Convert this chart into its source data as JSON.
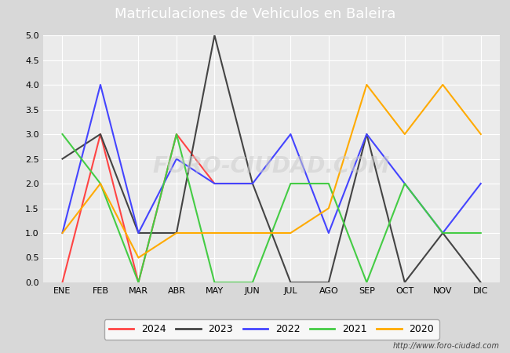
{
  "title": "Matriculaciones de Vehiculos en Baleira",
  "months": [
    "ENE",
    "FEB",
    "MAR",
    "ABR",
    "MAY",
    "JUN",
    "JUL",
    "AGO",
    "SEP",
    "OCT",
    "NOV",
    "DIC"
  ],
  "series": {
    "2024": {
      "color": "#ff4444",
      "values": [
        0,
        3,
        0,
        3,
        2,
        2,
        null,
        null,
        null,
        null,
        null,
        null
      ]
    },
    "2023": {
      "color": "#444444",
      "values": [
        2.5,
        3,
        1,
        1,
        5,
        2,
        0,
        0,
        3,
        0,
        1,
        0
      ]
    },
    "2022": {
      "color": "#4444ff",
      "values": [
        1,
        4,
        1,
        2.5,
        2,
        2,
        3,
        1,
        3,
        2,
        1,
        2
      ]
    },
    "2021": {
      "color": "#44cc44",
      "values": [
        3,
        2,
        0,
        3,
        0,
        0,
        2,
        2,
        0,
        2,
        1,
        1
      ]
    },
    "2020": {
      "color": "#ffaa00",
      "values": [
        1,
        2,
        0.5,
        1,
        1,
        1,
        1,
        1.5,
        4,
        3,
        4,
        3
      ]
    }
  },
  "ylim": [
    0,
    5.0
  ],
  "yticks": [
    0.0,
    0.5,
    1.0,
    1.5,
    2.0,
    2.5,
    3.0,
    3.5,
    4.0,
    4.5,
    5.0
  ],
  "plot_bg_color": "#ebebeb",
  "title_bg_color": "#5588bb",
  "title_text_color": "#ffffff",
  "outer_bg_color": "#d8d8d8",
  "watermark": "FORO-CIUDAD.COM",
  "url": "http://www.foro-ciudad.com",
  "legend_years": [
    "2024",
    "2023",
    "2022",
    "2021",
    "2020"
  ],
  "legend_colors": [
    "#ff4444",
    "#444444",
    "#4444ff",
    "#44cc44",
    "#ffaa00"
  ],
  "title_fontsize": 13,
  "tick_fontsize": 8,
  "legend_fontsize": 9,
  "line_width": 1.5
}
